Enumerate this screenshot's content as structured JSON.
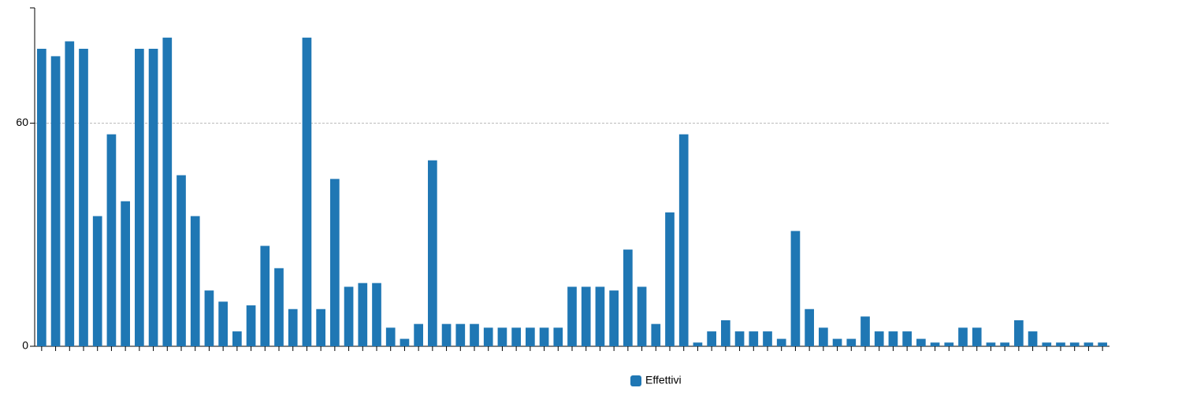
{
  "chart_data": {
    "type": "bar",
    "categories": [
      null,
      null,
      null,
      null,
      null,
      null,
      null,
      null,
      null,
      null,
      null,
      null,
      null,
      null,
      null,
      null,
      null,
      null,
      null,
      null,
      null,
      null,
      null,
      null,
      null,
      null,
      null,
      null,
      null,
      null,
      null,
      null,
      null,
      null,
      null,
      null,
      null,
      null,
      null,
      null,
      null,
      null,
      null,
      null,
      null,
      null,
      null,
      null,
      null,
      null,
      null,
      null,
      null,
      null,
      null,
      null,
      null,
      null,
      null,
      null,
      null,
      null,
      null,
      null,
      null,
      null,
      null,
      null,
      null,
      null,
      null,
      null,
      null,
      null,
      null,
      null,
      null
    ],
    "series": [
      {
        "name": "Effettivi",
        "color": "#1f77b4",
        "values": [
          80,
          78,
          82,
          80,
          35,
          57,
          39,
          80,
          80,
          83,
          46,
          35,
          15,
          12,
          4,
          11,
          27,
          21,
          10,
          83,
          10,
          45,
          16,
          17,
          17,
          5,
          2,
          6,
          50,
          6,
          6,
          6,
          5,
          5,
          5,
          5,
          5,
          5,
          16,
          16,
          16,
          15,
          26,
          16,
          6,
          36,
          57,
          1,
          4,
          7,
          4,
          4,
          4,
          2,
          31,
          10,
          5,
          2,
          2,
          8,
          4,
          4,
          4,
          2,
          1,
          1,
          5,
          5,
          1,
          1,
          7,
          4,
          1,
          1,
          1,
          1,
          1
        ]
      }
    ],
    "ylim": [
      0,
      91
    ],
    "yticks": [
      0,
      60
    ],
    "grid": true
  }
}
